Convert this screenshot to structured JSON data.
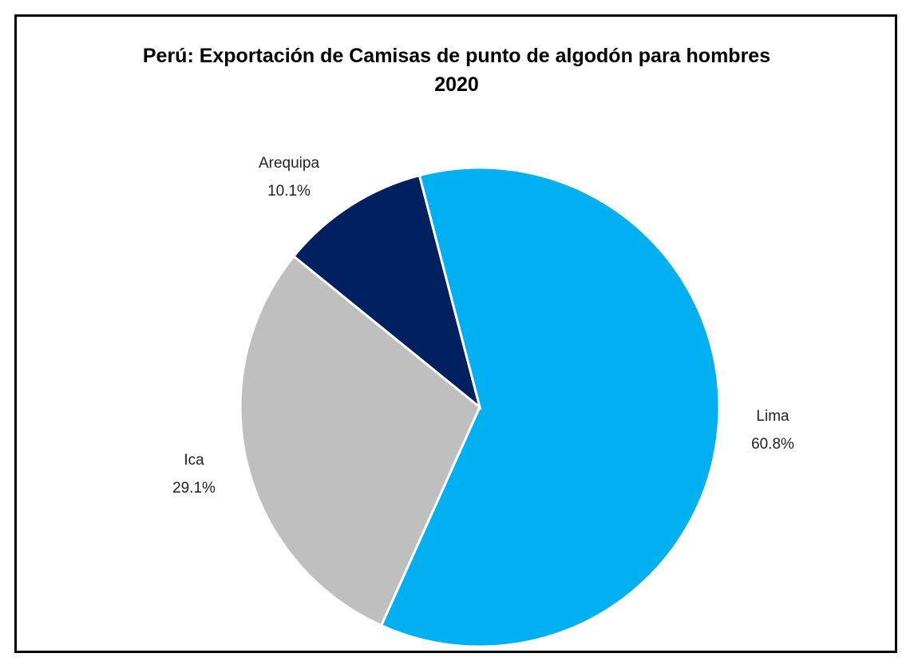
{
  "chart_data": {
    "type": "pie",
    "title": "Perú: Exportación de Camisas de punto de algodón para hombres 2020",
    "categories": [
      "Lima",
      "Ica",
      "Arequipa"
    ],
    "values": [
      60.8,
      29.1,
      10.1
    ],
    "value_labels": [
      "60.8%",
      "29.1%",
      "10.1%"
    ],
    "colors": [
      "#00b0f0",
      "#bfbfbf",
      "#002060"
    ]
  }
}
